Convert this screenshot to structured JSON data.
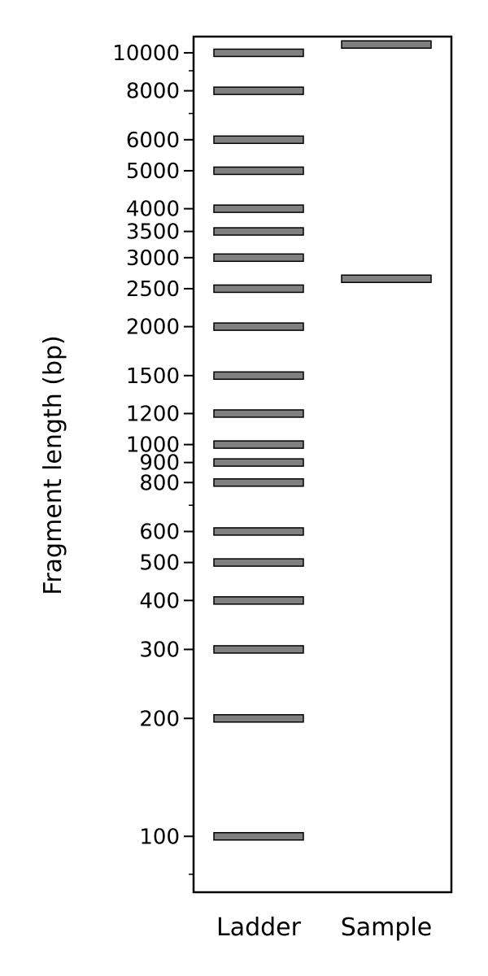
{
  "chart_data": {
    "type": "gel",
    "ylabel": "Fragment length (bp)",
    "yscale": "log",
    "ylim": [
      72,
      11000
    ],
    "lanes": [
      {
        "label": "Ladder",
        "bands": [
          100,
          200,
          300,
          400,
          500,
          600,
          800,
          900,
          1000,
          1200,
          1500,
          2000,
          2500,
          3000,
          3500,
          4000,
          5000,
          6000,
          8000,
          10000
        ]
      },
      {
        "label": "Sample",
        "bands": [
          2650,
          10500
        ]
      }
    ],
    "ytick_labels": [
      "100",
      "200",
      "300",
      "400",
      "500",
      "600",
      "800",
      "900",
      "1000",
      "1200",
      "1500",
      "2000",
      "2500",
      "3000",
      "3500",
      "4000",
      "5000",
      "6000",
      "8000",
      "10000"
    ],
    "minor_ticks": [
      80,
      700,
      7000,
      9000
    ],
    "band_color": "#808080",
    "band_edge_color": "#000000"
  }
}
